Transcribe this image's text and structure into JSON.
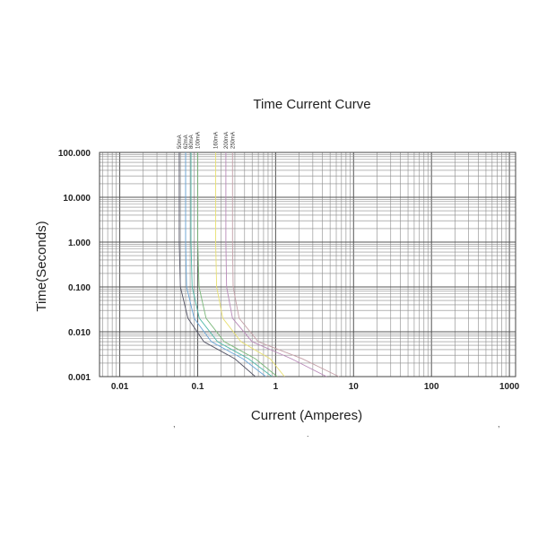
{
  "chart_data": {
    "type": "line",
    "title": "Time Current Curve",
    "xlabel": "Current (Amperes)",
    "ylabel": "Time(Seconds)",
    "x_scale": "log",
    "y_scale": "log",
    "xlim": [
      0.0055,
      1200
    ],
    "ylim": [
      0.001,
      100
    ],
    "grid": true,
    "x_ticks": [
      {
        "value": 0.01,
        "label": "0.01"
      },
      {
        "value": 0.1,
        "label": "0.1"
      },
      {
        "value": 1,
        "label": "1"
      },
      {
        "value": 10,
        "label": "10"
      },
      {
        "value": 100,
        "label": "100"
      },
      {
        "value": 1000,
        "label": "1000"
      }
    ],
    "y_ticks": [
      {
        "value": 100,
        "label": "100.000"
      },
      {
        "value": 10,
        "label": "10.000"
      },
      {
        "value": 1,
        "label": "1.000"
      },
      {
        "value": 0.1,
        "label": "0.100"
      },
      {
        "value": 0.01,
        "label": "0.010"
      },
      {
        "value": 0.001,
        "label": "0.001"
      }
    ],
    "series": [
      {
        "name": "50mA",
        "color": "#555566",
        "points": [
          [
            0.058,
            100
          ],
          [
            0.058,
            1
          ],
          [
            0.06,
            0.1
          ],
          [
            0.075,
            0.02
          ],
          [
            0.12,
            0.006
          ],
          [
            0.3,
            0.0025
          ],
          [
            0.55,
            0.001
          ]
        ]
      },
      {
        "name": "62mA",
        "color": "#6aa6d8",
        "points": [
          [
            0.07,
            100
          ],
          [
            0.07,
            1
          ],
          [
            0.072,
            0.1
          ],
          [
            0.09,
            0.02
          ],
          [
            0.15,
            0.006
          ],
          [
            0.38,
            0.0025
          ],
          [
            0.75,
            0.001
          ]
        ]
      },
      {
        "name": "80mA",
        "color": "#4fb8a8",
        "points": [
          [
            0.082,
            100
          ],
          [
            0.082,
            1
          ],
          [
            0.085,
            0.1
          ],
          [
            0.105,
            0.02
          ],
          [
            0.18,
            0.006
          ],
          [
            0.45,
            0.0025
          ],
          [
            0.9,
            0.001
          ]
        ]
      },
      {
        "name": "100mA",
        "color": "#7ab87a",
        "points": [
          [
            0.1,
            100
          ],
          [
            0.1,
            1
          ],
          [
            0.104,
            0.1
          ],
          [
            0.128,
            0.02
          ],
          [
            0.22,
            0.006
          ],
          [
            0.55,
            0.0025
          ],
          [
            1.05,
            0.001
          ]
        ]
      },
      {
        "name": "160mA",
        "color": "#e8e070",
        "points": [
          [
            0.17,
            100
          ],
          [
            0.17,
            1
          ],
          [
            0.175,
            0.1
          ],
          [
            0.21,
            0.02
          ],
          [
            0.36,
            0.006
          ],
          [
            0.85,
            0.0025
          ],
          [
            1.3,
            0.001
          ]
        ]
      },
      {
        "name": "200mA",
        "color": "#b889b8",
        "points": [
          [
            0.23,
            100
          ],
          [
            0.23,
            1
          ],
          [
            0.235,
            0.1
          ],
          [
            0.28,
            0.02
          ],
          [
            0.5,
            0.006
          ],
          [
            1.6,
            0.0025
          ],
          [
            4.5,
            0.001
          ]
        ]
      },
      {
        "name": "250mA",
        "color": "#c4a0a8",
        "points": [
          [
            0.28,
            100
          ],
          [
            0.28,
            1
          ],
          [
            0.285,
            0.1
          ],
          [
            0.34,
            0.02
          ],
          [
            0.6,
            0.006
          ],
          [
            2.2,
            0.0025
          ],
          [
            6.5,
            0.001
          ]
        ]
      }
    ]
  }
}
